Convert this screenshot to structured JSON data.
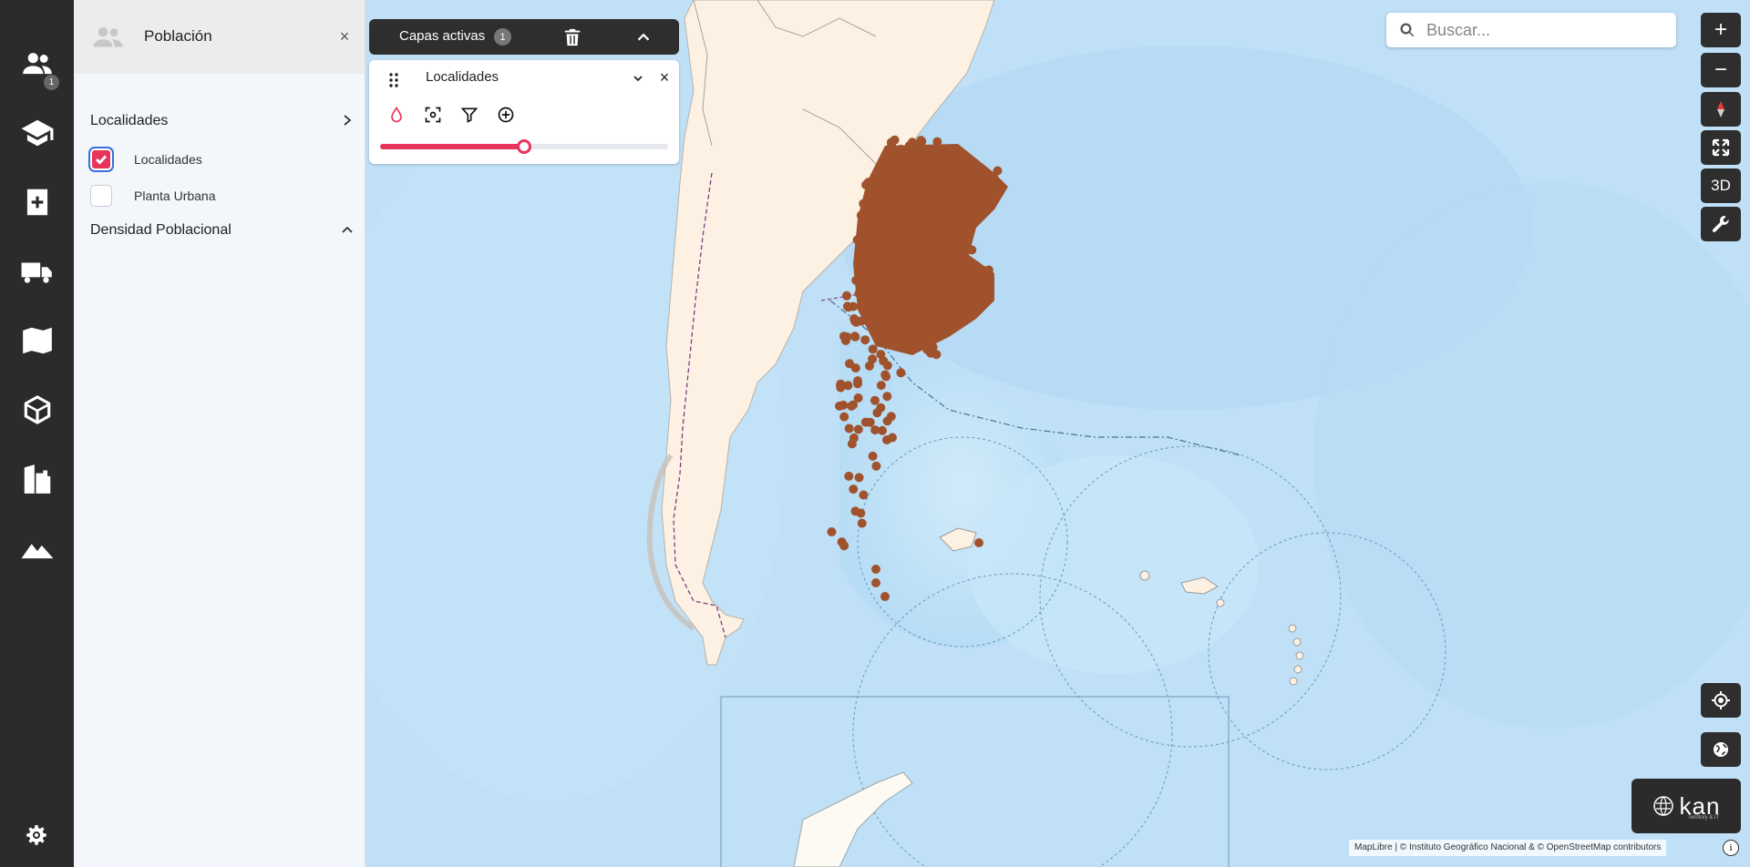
{
  "rail": {
    "badge": "1",
    "items": [
      {
        "icon": "population-icon",
        "label": "Población"
      },
      {
        "icon": "education-icon"
      },
      {
        "icon": "health-icon"
      },
      {
        "icon": "transport-icon"
      },
      {
        "icon": "map-icon"
      },
      {
        "icon": "box-icon"
      },
      {
        "icon": "buildings-icon"
      },
      {
        "icon": "terrain-icon"
      }
    ],
    "settings_icon": "gear-icon"
  },
  "panel": {
    "title": "Población",
    "close": "×",
    "sections": [
      {
        "label": "Localidades",
        "state": "collapsed-right"
      },
      {
        "label": "Densidad Poblacional",
        "state": "expanded"
      }
    ],
    "layers": [
      {
        "label": "Localidades",
        "checked": true
      },
      {
        "label": "Planta Urbana",
        "checked": false
      }
    ]
  },
  "active_layers": {
    "title": "Capas activas",
    "count": "1",
    "layer": {
      "name": "Localidades",
      "close": "×",
      "opacity": 0.5
    }
  },
  "search": {
    "placeholder": "Buscar..."
  },
  "controls": {
    "zoom_in": "+",
    "zoom_out": "−",
    "three_d": "3D"
  },
  "logo": {
    "text": "kan",
    "subtitle": "Territory & IT"
  },
  "attribution": "MapLibre | © Instituto Geográfico Nacional & © OpenStreetMap contributors",
  "info": "i",
  "colors": {
    "accent": "#e8335a",
    "rail": "#2b2b2b",
    "locality_point": "#a0522d",
    "land": "#fdf1e3",
    "ocean": "#bfe0f7"
  }
}
